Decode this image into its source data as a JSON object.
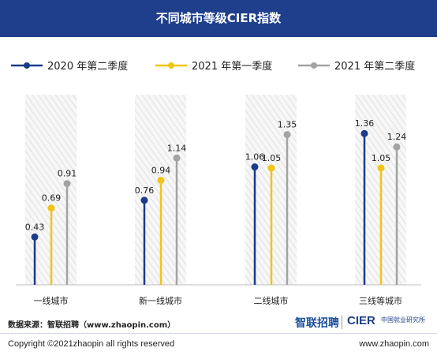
{
  "header": {
    "title": "不同城市等级CIER指数"
  },
  "legend_labels": [
    "2020 年第二季度",
    "2021 年第一季度",
    "2021 年第二季度"
  ],
  "colors": {
    "header_bg": "#1f3f8c",
    "series": [
      "#1a3c8a",
      "#f0c419",
      "#a3a3a3"
    ]
  },
  "footer": {
    "source": "数据来源：智联招聘（www.zhaopin.com）",
    "logo_zhaopin": "智联招聘",
    "logo_cier": "CIER",
    "logo_cier_cn": "中国就业研究所",
    "copyright": "Copyright ©2021zhaopin all rights reserved",
    "website": "www.zhaopin.com"
  },
  "chart_data": {
    "type": "lollipop",
    "categories": [
      "一线城市",
      "新一线城市",
      "二线城市",
      "三线等城市"
    ],
    "series": [
      {
        "name": "2020 年第二季度",
        "values": [
          0.43,
          0.76,
          1.06,
          1.36
        ]
      },
      {
        "name": "2021 年第一季度",
        "values": [
          0.69,
          0.94,
          1.05,
          1.05
        ]
      },
      {
        "name": "2021 年第二季度",
        "values": [
          0.91,
          1.14,
          1.35,
          1.24
        ]
      }
    ],
    "legend_position": "top",
    "grid": false
  }
}
